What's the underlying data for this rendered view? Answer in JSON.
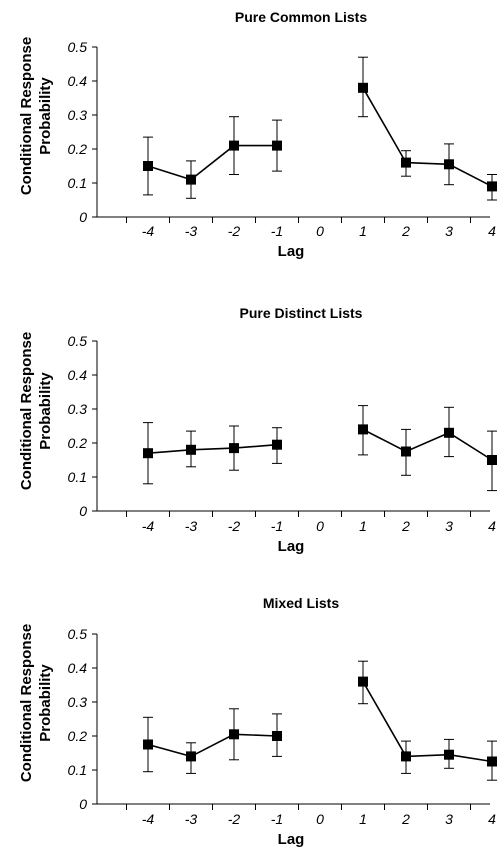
{
  "chart_data": [
    {
      "type": "line",
      "title": "Pure Common Lists",
      "xlabel": "Lag",
      "ylabel": "Conditional Response Probability",
      "ylabel_lines": [
        "Conditional Response",
        "Probability"
      ],
      "ylim": [
        0,
        0.5
      ],
      "y_ticks": [
        "0",
        "0.1",
        "0.2",
        "0.3",
        "0.4",
        "0.5"
      ],
      "categories": [
        "-4",
        "-3",
        "-2",
        "-1",
        "0",
        "1",
        "2",
        "3",
        "4"
      ],
      "marker": "square",
      "color": "#000000",
      "series": [
        {
          "segments": [
            {
              "x": [
                -4,
                -3,
                -2,
                -1
              ],
              "y": [
                0.15,
                0.11,
                0.21,
                0.21
              ],
              "err_low": [
                0.065,
                0.055,
                0.125,
                0.135
              ],
              "err_high": [
                0.235,
                0.165,
                0.295,
                0.285
              ]
            },
            {
              "x": [
                1,
                2,
                3,
                4
              ],
              "y": [
                0.38,
                0.16,
                0.155,
                0.09
              ],
              "err_low": [
                0.295,
                0.12,
                0.095,
                0.05
              ],
              "err_high": [
                0.47,
                0.195,
                0.215,
                0.125
              ]
            }
          ]
        }
      ]
    },
    {
      "type": "line",
      "title": "Pure Distinct Lists",
      "xlabel": "Lag",
      "ylabel": "Conditional Response Probability",
      "ylabel_lines": [
        "Conditional Response",
        "Probability"
      ],
      "ylim": [
        0,
        0.5
      ],
      "y_ticks": [
        "0",
        "0.1",
        "0.2",
        "0.3",
        "0.4",
        "0.5"
      ],
      "categories": [
        "-4",
        "-3",
        "-2",
        "-1",
        "0",
        "1",
        "2",
        "3",
        "4"
      ],
      "marker": "square",
      "color": "#000000",
      "series": [
        {
          "segments": [
            {
              "x": [
                -4,
                -3,
                -2,
                -1
              ],
              "y": [
                0.17,
                0.18,
                0.185,
                0.195
              ],
              "err_low": [
                0.08,
                0.13,
                0.12,
                0.14
              ],
              "err_high": [
                0.26,
                0.235,
                0.25,
                0.245
              ]
            },
            {
              "x": [
                1,
                2,
                3,
                4
              ],
              "y": [
                0.24,
                0.175,
                0.23,
                0.15
              ],
              "err_low": [
                0.165,
                0.105,
                0.16,
                0.06
              ],
              "err_high": [
                0.31,
                0.24,
                0.305,
                0.235
              ]
            }
          ]
        }
      ]
    },
    {
      "type": "line",
      "title": "Mixed Lists",
      "xlabel": "Lag",
      "ylabel": "Conditional Response Probability",
      "ylabel_lines": [
        "Conditional Response",
        "Probability"
      ],
      "ylim": [
        0,
        0.5
      ],
      "y_ticks": [
        "0",
        "0.1",
        "0.2",
        "0.3",
        "0.4",
        "0.5"
      ],
      "categories": [
        "-4",
        "-3",
        "-2",
        "-1",
        "0",
        "1",
        "2",
        "3",
        "4"
      ],
      "marker": "square",
      "color": "#000000",
      "series": [
        {
          "segments": [
            {
              "x": [
                -4,
                -3,
                -2,
                -1
              ],
              "y": [
                0.175,
                0.14,
                0.205,
                0.2
              ],
              "err_low": [
                0.095,
                0.09,
                0.13,
                0.14
              ],
              "err_high": [
                0.255,
                0.18,
                0.28,
                0.265
              ]
            },
            {
              "x": [
                1,
                2,
                3,
                4
              ],
              "y": [
                0.36,
                0.14,
                0.145,
                0.125
              ],
              "err_low": [
                0.295,
                0.09,
                0.105,
                0.07
              ],
              "err_high": [
                0.42,
                0.185,
                0.19,
                0.185
              ]
            }
          ]
        }
      ]
    }
  ]
}
